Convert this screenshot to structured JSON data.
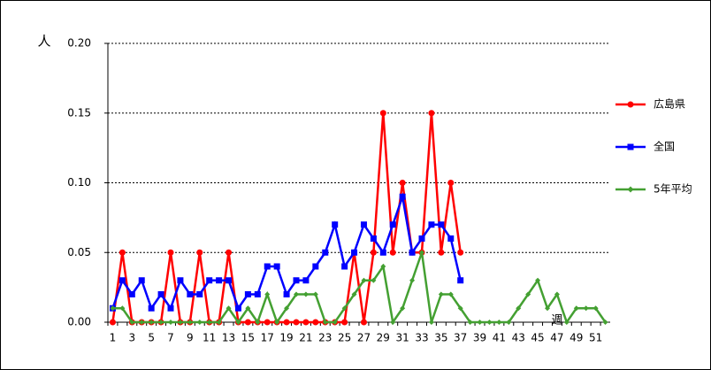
{
  "chart_data": {
    "type": "line",
    "y_label": "人",
    "x_label": "週",
    "categories": [
      1,
      null,
      3,
      null,
      5,
      null,
      7,
      null,
      9,
      null,
      11,
      null,
      13,
      null,
      15,
      null,
      17,
      null,
      19,
      null,
      21,
      null,
      23,
      null,
      25,
      null,
      27,
      null,
      29,
      null,
      31,
      null,
      33,
      null,
      35,
      null,
      37,
      null,
      39,
      null,
      41,
      null,
      43,
      null,
      45,
      null,
      47,
      null,
      49,
      null,
      51,
      null
    ],
    "series": [
      {
        "name": "広島県",
        "color": "#ff0000",
        "marker": "circle",
        "values": [
          0,
          0.05,
          0,
          0,
          0,
          0,
          0.05,
          0,
          0,
          0.05,
          0,
          0,
          0.05,
          0,
          0,
          0,
          0,
          0,
          0,
          0,
          0,
          0,
          0,
          0,
          0,
          0.05,
          0,
          0.05,
          0.15,
          0.05,
          0.1,
          0.05,
          0.05,
          0.15,
          0.05,
          0.1,
          0.05,
          null,
          null,
          null,
          null,
          null,
          null,
          null,
          null,
          null,
          null,
          null,
          null,
          null,
          null,
          null
        ]
      },
      {
        "name": "全国",
        "color": "#0000ff",
        "marker": "square",
        "values": [
          0.01,
          0.03,
          0.02,
          0.03,
          0.01,
          0.02,
          0.01,
          0.03,
          0.02,
          0.02,
          0.03,
          0.03,
          0.03,
          0.01,
          0.02,
          0.02,
          0.04,
          0.04,
          0.02,
          0.03,
          0.03,
          0.04,
          0.05,
          0.07,
          0.04,
          0.05,
          0.07,
          0.06,
          0.05,
          0.07,
          0.09,
          0.05,
          0.06,
          0.07,
          0.07,
          0.06,
          0.03,
          null,
          null,
          null,
          null,
          null,
          null,
          null,
          null,
          null,
          null,
          null,
          null,
          null,
          null,
          null
        ]
      },
      {
        "name": "5年平均",
        "color": "#44a032",
        "marker": "diamond",
        "values": [
          0.01,
          0.01,
          0,
          0,
          0,
          0,
          0,
          0,
          0,
          0,
          0,
          0,
          0.01,
          0,
          0.01,
          0,
          0.02,
          0,
          0.01,
          0.02,
          0.02,
          0.02,
          0,
          0,
          0.01,
          0.02,
          0.03,
          0.03,
          0.04,
          0,
          0.01,
          0.03,
          0.05,
          0,
          0.02,
          0.02,
          0.01,
          0,
          0,
          0,
          0,
          0,
          0.01,
          0.02,
          0.03,
          0.01,
          0.02,
          0,
          0.01,
          0.01,
          0.01,
          0
        ]
      }
    ],
    "ylim": [
      0,
      0.2
    ],
    "yticks": [
      {
        "value": 0,
        "label": "0.00"
      },
      {
        "value": 0.05,
        "label": "0.05"
      },
      {
        "value": 0.1,
        "label": "0.10"
      },
      {
        "value": 0.15,
        "label": "0.15"
      },
      {
        "value": 0.2,
        "label": "0.20"
      }
    ],
    "grid": true,
    "legend": "right"
  }
}
